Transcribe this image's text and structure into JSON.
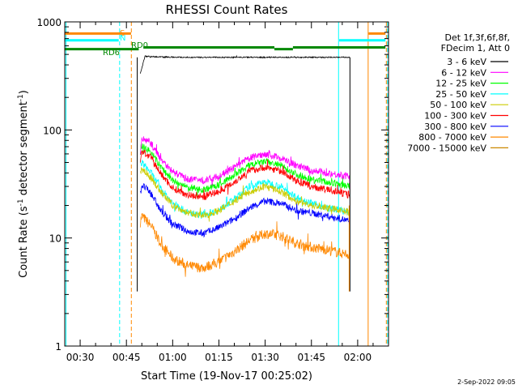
{
  "chart_data": {
    "type": "line",
    "title": "RHESSI Count Rates",
    "xlabel": "Start Time (19-Nov-17 00:25:02)",
    "ylabel_main": "Count Rate (s",
    "ylabel_sup1": "-1",
    "ylabel_mid": " detector segment",
    "ylabel_sup2": "-1",
    "ylabel_end": ")",
    "yscale": "log",
    "xlim_minutes": [
      0,
      105
    ],
    "ylim": [
      1,
      1000
    ],
    "x_tick_minutes": [
      5,
      20,
      35,
      50,
      65,
      80,
      95
    ],
    "x_tick_labels": [
      "00:30",
      "00:45",
      "01:00",
      "01:15",
      "01:30",
      "01:45",
      "02:00"
    ],
    "y_ticks": [
      1,
      10,
      100,
      1000
    ],
    "y_tick_labels": [
      "1",
      "10",
      "100",
      "1000"
    ],
    "legend_header": [
      "Det 1f,3f,6f,8f,",
      "FDecim 1, Att 0"
    ],
    "legend_position": "right",
    "data_start_minute": 23.5,
    "data_end_minute": 92.5,
    "series": [
      {
        "name": "3 - 6 keV",
        "color": "#000000",
        "points": [
          [
            24.5,
            330
          ],
          [
            26,
            480
          ],
          [
            30,
            475
          ],
          [
            40,
            470
          ],
          [
            50,
            470
          ],
          [
            55,
            470
          ],
          [
            60,
            470
          ],
          [
            70,
            470
          ],
          [
            80,
            470
          ],
          [
            90,
            470
          ],
          [
            92.5,
            470
          ]
        ]
      },
      {
        "name": "6 - 12 keV",
        "color": "#ff00ff",
        "points": [
          [
            24.5,
            60
          ],
          [
            25,
            84
          ],
          [
            28,
            75
          ],
          [
            31,
            55
          ],
          [
            35,
            41
          ],
          [
            40,
            35
          ],
          [
            45,
            34
          ],
          [
            50,
            37
          ],
          [
            55,
            45
          ],
          [
            60,
            55
          ],
          [
            65,
            60
          ],
          [
            70,
            55
          ],
          [
            75,
            47
          ],
          [
            80,
            42
          ],
          [
            85,
            40
          ],
          [
            90,
            38
          ],
          [
            92.5,
            37
          ]
        ]
      },
      {
        "name": "12 - 25 keV",
        "color": "#00ff00",
        "points": [
          [
            24.5,
            55
          ],
          [
            25,
            72
          ],
          [
            28,
            62
          ],
          [
            31,
            46
          ],
          [
            35,
            34
          ],
          [
            40,
            29
          ],
          [
            45,
            28
          ],
          [
            50,
            31
          ],
          [
            55,
            38
          ],
          [
            60,
            47
          ],
          [
            65,
            51
          ],
          [
            70,
            47
          ],
          [
            75,
            39
          ],
          [
            80,
            35
          ],
          [
            85,
            33
          ],
          [
            90,
            31
          ],
          [
            92.5,
            30
          ]
        ]
      },
      {
        "name": "25 - 50 keV",
        "color": "#00ffff",
        "points": [
          [
            24.5,
            48
          ],
          [
            25,
            50
          ],
          [
            28,
            40
          ],
          [
            31,
            29
          ],
          [
            35,
            21
          ],
          [
            40,
            17
          ],
          [
            45,
            16.5
          ],
          [
            50,
            18
          ],
          [
            55,
            23
          ],
          [
            60,
            30
          ],
          [
            65,
            33
          ],
          [
            70,
            30
          ],
          [
            75,
            24
          ],
          [
            80,
            21
          ],
          [
            85,
            19
          ],
          [
            90,
            18
          ],
          [
            92.5,
            17
          ]
        ]
      },
      {
        "name": "50 - 100 keV",
        "color": "#cccc00",
        "points": [
          [
            24.5,
            40
          ],
          [
            25,
            44
          ],
          [
            28,
            36
          ],
          [
            31,
            27
          ],
          [
            35,
            20
          ],
          [
            40,
            17
          ],
          [
            45,
            16
          ],
          [
            50,
            18
          ],
          [
            55,
            22
          ],
          [
            60,
            27
          ],
          [
            65,
            30
          ],
          [
            70,
            27
          ],
          [
            75,
            22
          ],
          [
            80,
            20
          ],
          [
            85,
            19
          ],
          [
            90,
            18
          ],
          [
            92.5,
            17
          ]
        ]
      },
      {
        "name": "100 - 300 keV",
        "color": "#ff0000",
        "points": [
          [
            24.5,
            52
          ],
          [
            25,
            64
          ],
          [
            28,
            55
          ],
          [
            31,
            40
          ],
          [
            35,
            29
          ],
          [
            40,
            25
          ],
          [
            45,
            24
          ],
          [
            50,
            27
          ],
          [
            55,
            33
          ],
          [
            60,
            42
          ],
          [
            65,
            45
          ],
          [
            70,
            42
          ],
          [
            75,
            34
          ],
          [
            80,
            30
          ],
          [
            85,
            28
          ],
          [
            90,
            26
          ],
          [
            92.5,
            25
          ]
        ]
      },
      {
        "name": "300 - 800 keV",
        "color": "#0000ff",
        "points": [
          [
            24.5,
            25
          ],
          [
            25,
            31
          ],
          [
            28,
            26
          ],
          [
            31,
            18
          ],
          [
            35,
            13.5
          ],
          [
            40,
            11.5
          ],
          [
            45,
            11
          ],
          [
            50,
            12.5
          ],
          [
            55,
            15
          ],
          [
            60,
            19
          ],
          [
            65,
            22
          ],
          [
            70,
            21
          ],
          [
            75,
            18
          ],
          [
            80,
            17
          ],
          [
            85,
            16
          ],
          [
            90,
            15
          ],
          [
            92.5,
            14
          ]
        ]
      },
      {
        "name": "800 - 7000 keV",
        "color": "#ff8800",
        "points": [
          [
            24.5,
            14
          ],
          [
            25,
            16
          ],
          [
            28,
            13
          ],
          [
            31,
            9
          ],
          [
            35,
            6.5
          ],
          [
            40,
            5.5
          ],
          [
            45,
            5.3
          ],
          [
            50,
            6
          ],
          [
            55,
            7.5
          ],
          [
            60,
            9.5
          ],
          [
            65,
            11
          ],
          [
            70,
            10.5
          ],
          [
            75,
            9
          ],
          [
            80,
            8.2
          ],
          [
            85,
            7.8
          ],
          [
            90,
            7.2
          ],
          [
            92.5,
            7
          ]
        ]
      },
      {
        "name": "7000 - 15000 keV",
        "color": "#cc8800",
        "points": []
      }
    ],
    "markers": [
      {
        "label": "S",
        "color": "#ff8800",
        "segments": [
          [
            0,
            21.5
          ],
          [
            98.5,
            104
          ]
        ],
        "y": 780,
        "thickness": 3
      },
      {
        "label": "N",
        "color": "#00ffff",
        "segments": [
          [
            0,
            17.5
          ],
          [
            89,
            104
          ]
        ],
        "y": 675,
        "thickness": 3
      },
      {
        "label": "RD0",
        "color": "#008800",
        "segments": [
          [
            25.5,
            68
          ],
          [
            74,
            104
          ]
        ],
        "y": 580,
        "thickness": 3
      },
      {
        "label": "RD6",
        "color": "#008800",
        "segments": [
          [
            0,
            24
          ],
          [
            68,
            74
          ]
        ],
        "y": 560,
        "thickness": 3
      }
    ],
    "vlines": [
      {
        "minute": 0.4,
        "color": "#00ffff",
        "dashed": false
      },
      {
        "minute": 17.8,
        "color": "#00ffff",
        "dashed": true
      },
      {
        "minute": 21.6,
        "color": "#ff8800",
        "dashed": true
      },
      {
        "minute": 88.8,
        "color": "#00ffff",
        "dashed": false
      },
      {
        "minute": 98.4,
        "color": "#ff8800",
        "dashed": false
      },
      {
        "minute": 104.3,
        "color": "#ff8800",
        "dashed": true
      },
      {
        "minute": 104.7,
        "color": "#00ffff",
        "dashed": true
      }
    ],
    "timestamp": "2-Sep-2022 09:05"
  }
}
